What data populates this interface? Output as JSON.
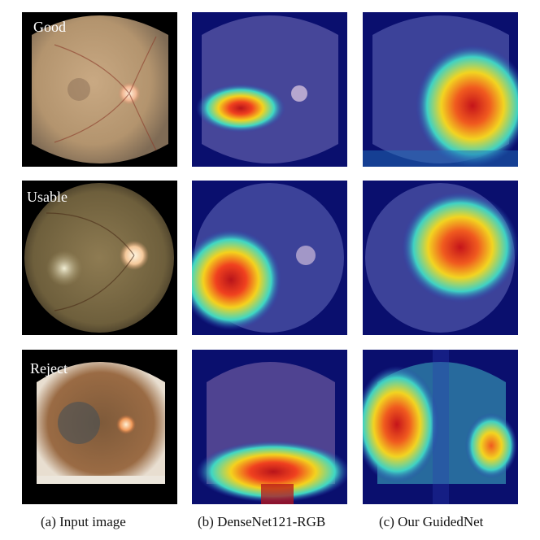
{
  "rows": [
    {
      "label": "Good"
    },
    {
      "label": "Usable"
    },
    {
      "label": "Reject"
    }
  ],
  "captions": {
    "col_a": "(a) Input image",
    "col_b": "(b) DenseNet121-RGB",
    "col_c": "(c) Our GuidedNet"
  },
  "colors": {
    "heat_bg": "#0a0f6e",
    "heat_hot": "#e32414",
    "heat_warm": "#f0d21e",
    "heat_mid": "#2ed0c8",
    "retina": "#b58a5a"
  }
}
